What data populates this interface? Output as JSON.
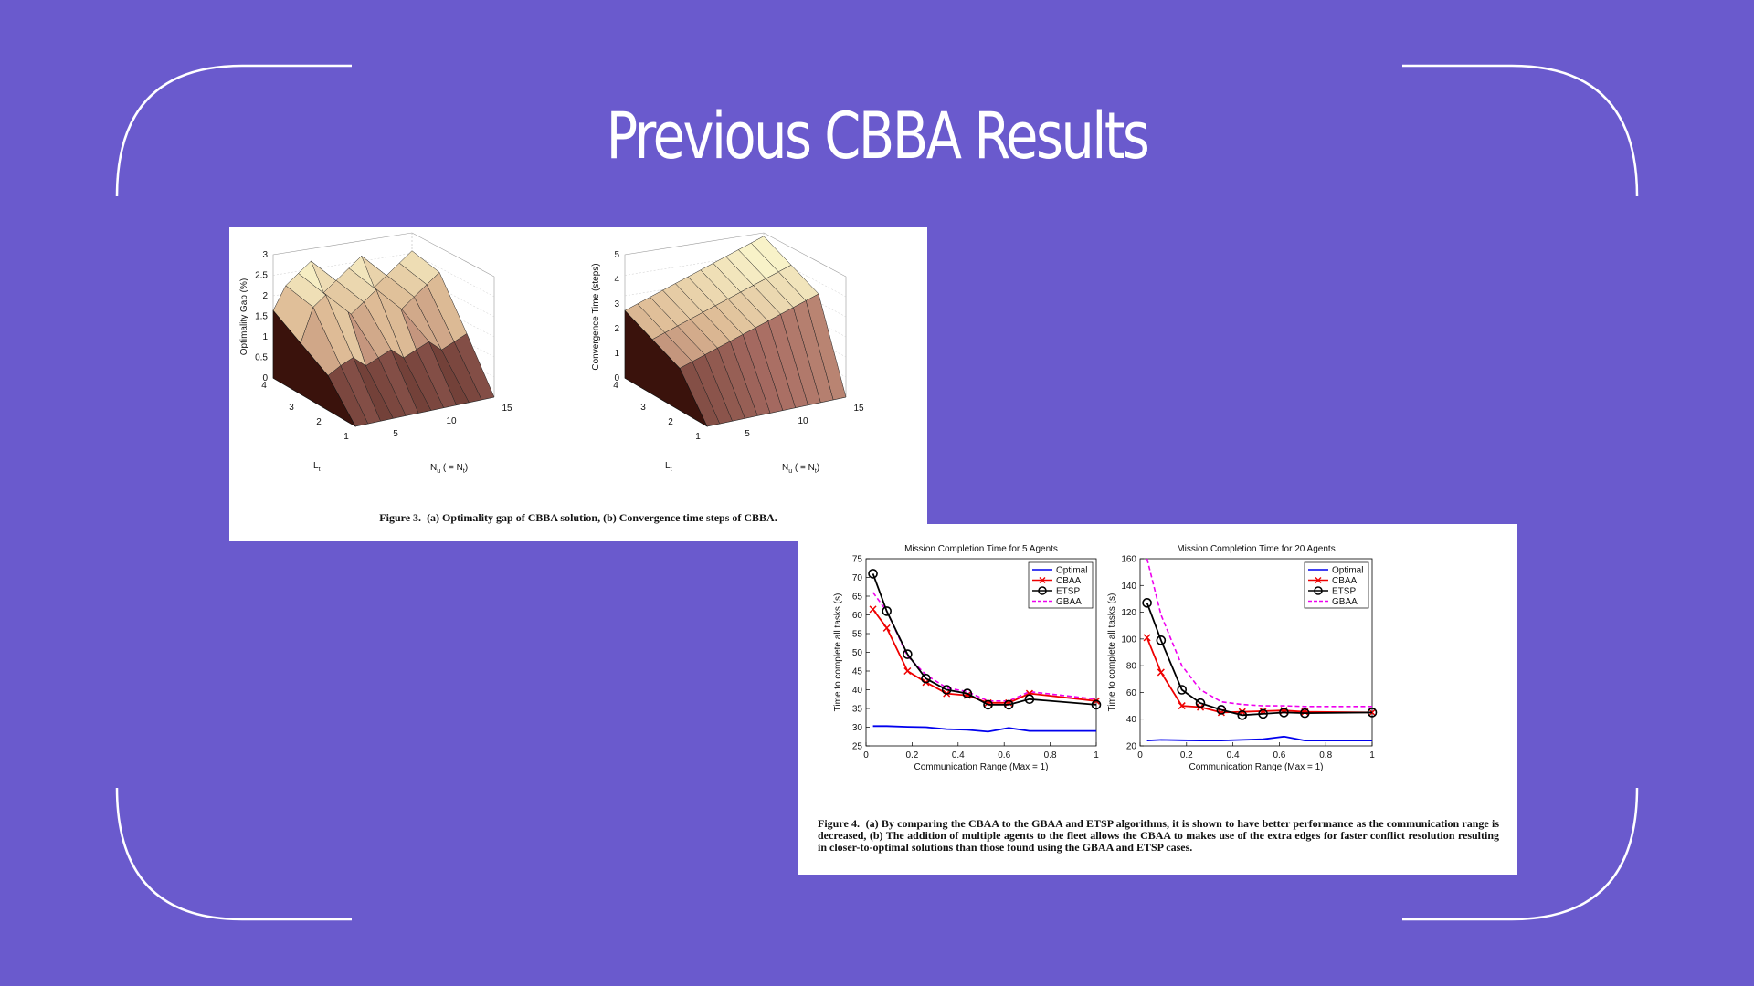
{
  "slide": {
    "title": "Previous CBBA Results",
    "background": "#6a5acd",
    "frame_color": "#ffffff"
  },
  "figure3": {
    "caption_label": "Figure 3.",
    "caption_text": "(a) Optimality gap of CBBA solution, (b) Convergence time steps of CBBA.",
    "plot_a": {
      "zlabel": "Optimality Gap (%)",
      "zticks": [
        "0",
        "0.5",
        "1",
        "1.5",
        "2",
        "2.5",
        "3"
      ],
      "lt_ticks": [
        "1",
        "2",
        "3",
        "4"
      ],
      "nu_ticks": [
        "5",
        "10",
        "15"
      ],
      "lt_label": "L",
      "lt_sub": "t",
      "nu_label": "N",
      "nu_sub": "u",
      "nu_label_tail": "( = N",
      "nu_sub2": "t",
      "nu_label_end": ")"
    },
    "plot_b": {
      "zlabel": "Convergence Time (steps)",
      "zticks": [
        "0",
        "1",
        "2",
        "3",
        "4",
        "5"
      ],
      "lt_ticks": [
        "1",
        "2",
        "3",
        "4"
      ],
      "nu_ticks": [
        "5",
        "10",
        "15"
      ],
      "lt_label": "L",
      "lt_sub": "t",
      "nu_label": "N",
      "nu_sub": "u",
      "nu_label_tail": "( = N",
      "nu_sub2": "t",
      "nu_label_end": ")"
    }
  },
  "figure4": {
    "caption_label": "Figure 4.",
    "caption_text": "(a) By comparing the CBAA to the GBAA and ETSP algorithms, it is shown to have better performance as the communication range is decreased, (b) The addition of multiple agents to the fleet allows the CBAA to makes use of the extra edges for faster conflict resolution resulting in closer-to-optimal solutions than those found using the GBAA and ETSP cases."
  },
  "chart_data": [
    {
      "type": "line",
      "title": "Mission Completion Time for 5 Agents",
      "xlabel": "Communication Range (Max = 1)",
      "ylabel": "Time to complete all tasks (s)",
      "xlim": [
        0,
        1
      ],
      "ylim": [
        25,
        75
      ],
      "xticks": [
        "0",
        "0.2",
        "0.4",
        "0.6",
        "0.8",
        "1"
      ],
      "yticks": [
        "25",
        "30",
        "35",
        "40",
        "45",
        "50",
        "55",
        "60",
        "65",
        "70",
        "75"
      ],
      "legend_position": "top-right",
      "series": [
        {
          "name": "Optimal",
          "color": "#0000ee",
          "marker": "none",
          "dash": "solid",
          "x": [
            0.03,
            0.09,
            0.18,
            0.26,
            0.35,
            0.44,
            0.53,
            0.62,
            0.71,
            0.8,
            1.0
          ],
          "y": [
            30.3,
            30.3,
            30.1,
            30.0,
            29.5,
            29.3,
            28.8,
            29.8,
            29.0,
            29.0,
            29.0
          ]
        },
        {
          "name": "CBAA",
          "color": "#ee0000",
          "marker": "x",
          "dash": "solid",
          "x": [
            0.03,
            0.09,
            0.18,
            0.26,
            0.35,
            0.44,
            0.53,
            0.62,
            0.71,
            1.0
          ],
          "y": [
            61.5,
            56.5,
            45.0,
            42.0,
            39.0,
            38.5,
            36.5,
            36.5,
            39.0,
            37.0
          ]
        },
        {
          "name": "ETSP",
          "color": "#000000",
          "marker": "o",
          "dash": "solid",
          "x": [
            0.03,
            0.09,
            0.18,
            0.26,
            0.35,
            0.44,
            0.53,
            0.62,
            0.71,
            1.0
          ],
          "y": [
            71.0,
            61.0,
            49.5,
            43.0,
            40.0,
            39.0,
            36.0,
            36.0,
            37.5,
            36.0
          ]
        },
        {
          "name": "GBAA",
          "color": "#ee00ee",
          "marker": "none",
          "dash": "dashed",
          "x": [
            0.03,
            0.09,
            0.18,
            0.26,
            0.35,
            0.44,
            0.53,
            0.62,
            0.71,
            1.0
          ],
          "y": [
            66.0,
            61.0,
            49.0,
            44.0,
            40.5,
            39.5,
            37.0,
            37.0,
            39.5,
            37.5
          ]
        }
      ]
    },
    {
      "type": "line",
      "title": "Mission Completion Time for 20 Agents",
      "xlabel": "Communication Range (Max = 1)",
      "ylabel": "Time to complete all tasks (s)",
      "xlim": [
        0,
        1
      ],
      "ylim": [
        20,
        160
      ],
      "xticks": [
        "0",
        "0.2",
        "0.4",
        "0.6",
        "0.8",
        "1"
      ],
      "yticks": [
        "20",
        "40",
        "60",
        "80",
        "100",
        "120",
        "140",
        "160"
      ],
      "legend_position": "top-right",
      "series": [
        {
          "name": "Optimal",
          "color": "#0000ee",
          "marker": "none",
          "dash": "solid",
          "x": [
            0.03,
            0.09,
            0.18,
            0.26,
            0.35,
            0.44,
            0.53,
            0.62,
            0.71,
            0.8,
            1.0
          ],
          "y": [
            24.0,
            24.5,
            24.2,
            24.0,
            24.0,
            24.5,
            25.0,
            27.0,
            24.0,
            24.0,
            24.0
          ]
        },
        {
          "name": "CBAA",
          "color": "#ee0000",
          "marker": "x",
          "dash": "solid",
          "x": [
            0.03,
            0.09,
            0.18,
            0.26,
            0.35,
            0.44,
            0.53,
            0.62,
            0.71,
            1.0
          ],
          "y": [
            101.0,
            75.0,
            50.0,
            49.0,
            45.0,
            45.5,
            46.0,
            46.5,
            45.5,
            45.0
          ]
        },
        {
          "name": "ETSP",
          "color": "#000000",
          "marker": "o",
          "dash": "solid",
          "x": [
            0.03,
            0.09,
            0.18,
            0.26,
            0.35,
            0.44,
            0.53,
            0.62,
            0.71,
            1.0
          ],
          "y": [
            127.0,
            99.0,
            62.0,
            52.0,
            47.0,
            43.0,
            44.0,
            45.0,
            44.5,
            45.0
          ]
        },
        {
          "name": "GBAA",
          "color": "#ee00ee",
          "marker": "none",
          "dash": "dashed",
          "x": [
            0.03,
            0.09,
            0.18,
            0.26,
            0.35,
            0.44,
            0.53,
            0.62,
            0.71,
            1.0
          ],
          "y": [
            160.0,
            118.0,
            80.0,
            62.0,
            53.0,
            51.0,
            50.0,
            50.0,
            49.5,
            49.5
          ]
        }
      ]
    }
  ]
}
